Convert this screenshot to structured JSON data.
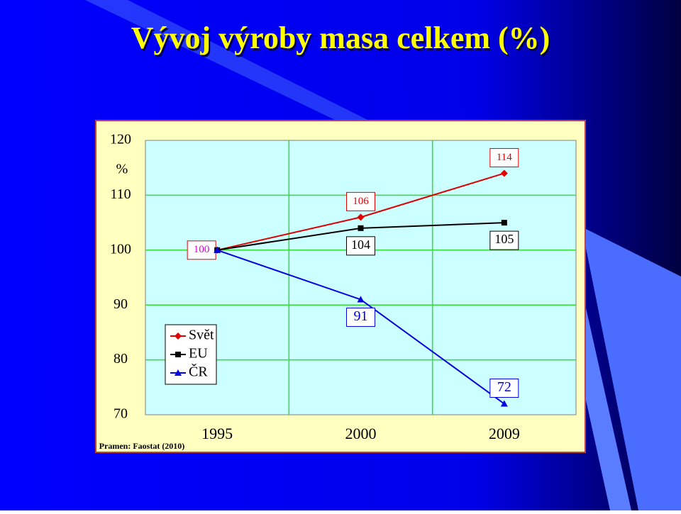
{
  "chart_data": {
    "type": "line",
    "title": "Vývoj výroby masa celkem (%)",
    "y_label": "%",
    "source": "Pramen: Faostat (2010)",
    "categories": [
      "1995",
      "2000",
      "2009"
    ],
    "series": [
      {
        "name": "Svět",
        "color": "#e00000",
        "marker": "diamond",
        "values": [
          100,
          106,
          114
        ],
        "labels": [
          true,
          true,
          true
        ]
      },
      {
        "name": "EU",
        "color": "#000000",
        "marker": "square",
        "values": [
          100,
          104,
          105
        ],
        "labels": [
          false,
          true,
          true
        ]
      },
      {
        "name": "ČR",
        "color": "#0000e0",
        "marker": "triangle",
        "values": [
          100,
          91,
          72
        ],
        "labels": [
          false,
          true,
          true
        ]
      }
    ],
    "ylim": [
      70,
      120
    ],
    "yticks": [
      70,
      80,
      90,
      100,
      110,
      120
    ],
    "grid": true
  }
}
